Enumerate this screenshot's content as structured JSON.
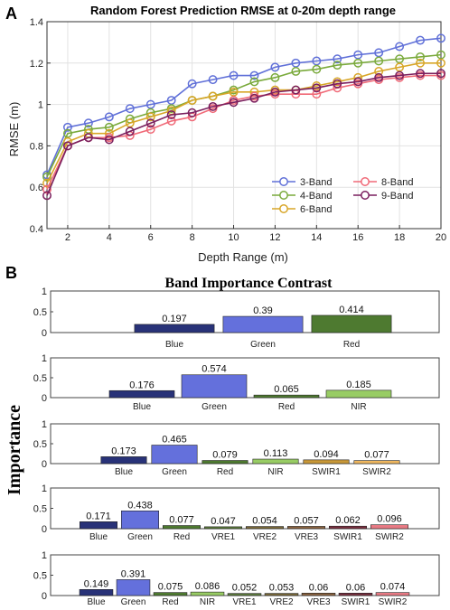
{
  "panel_a": {
    "letter": "A",
    "colors": {
      "3-Band": "#6070d8",
      "4-Band": "#7aaa3c",
      "6-Band": "#d8a628",
      "8-Band": "#f06a78",
      "9-Band": "#7a1f5e"
    },
    "chart_data": {
      "type": "line",
      "title": "Random Forest Prediction RMSE  at 0-20m depth range",
      "xlabel": "Depth Range (m)",
      "ylabel": "RMSE (m)",
      "x": [
        1,
        2,
        3,
        4,
        5,
        6,
        7,
        8,
        9,
        10,
        11,
        12,
        13,
        14,
        15,
        16,
        17,
        18,
        19,
        20
      ],
      "xlim": [
        1,
        20
      ],
      "ylim": [
        0.4,
        1.4
      ],
      "xticks": [
        "2",
        "4",
        "6",
        "8",
        "10",
        "12",
        "14",
        "16",
        "18",
        "20"
      ],
      "yticks": [
        "0.4",
        "0.6",
        "0.8",
        "1",
        "1.2",
        "1.4"
      ],
      "grid": true,
      "legend_position": "bottom-right",
      "series": [
        {
          "name": "3-Band",
          "values": [
            0.66,
            0.89,
            0.91,
            0.94,
            0.98,
            1.0,
            1.02,
            1.1,
            1.12,
            1.14,
            1.14,
            1.18,
            1.2,
            1.21,
            1.22,
            1.24,
            1.25,
            1.28,
            1.31,
            1.32
          ]
        },
        {
          "name": "4-Band",
          "values": [
            0.65,
            0.86,
            0.88,
            0.89,
            0.93,
            0.96,
            0.98,
            1.02,
            1.04,
            1.07,
            1.11,
            1.13,
            1.16,
            1.17,
            1.19,
            1.2,
            1.21,
            1.22,
            1.23,
            1.24
          ]
        },
        {
          "name": "6-Band",
          "values": [
            0.62,
            0.82,
            0.86,
            0.86,
            0.91,
            0.94,
            0.97,
            1.02,
            1.04,
            1.06,
            1.06,
            1.07,
            1.07,
            1.09,
            1.11,
            1.13,
            1.16,
            1.18,
            1.2,
            1.2
          ]
        },
        {
          "name": "8-Band",
          "values": [
            0.59,
            0.8,
            0.84,
            0.84,
            0.85,
            0.88,
            0.92,
            0.94,
            0.98,
            1.02,
            1.04,
            1.05,
            1.05,
            1.05,
            1.08,
            1.1,
            1.12,
            1.13,
            1.14,
            1.14
          ]
        },
        {
          "name": "9-Band",
          "values": [
            0.56,
            0.8,
            0.84,
            0.83,
            0.87,
            0.91,
            0.95,
            0.96,
            0.99,
            1.01,
            1.03,
            1.06,
            1.07,
            1.08,
            1.1,
            1.11,
            1.13,
            1.14,
            1.15,
            1.15
          ]
        }
      ]
    }
  },
  "panel_b": {
    "letter": "B",
    "title": "Band Importance Contrast",
    "ylabel": "Importance",
    "yticks": [
      "0",
      "0.5",
      "1"
    ],
    "band_colors": {
      "Blue": "#283278",
      "Green": "#6470dc",
      "Red": "#4e7a30",
      "NIR": "#98cc64",
      "VRE1": "#5c7c3c",
      "VRE2": "#7a6a3a",
      "VRE3": "#8c6440",
      "SWIR1": "#7a3040",
      "SWIR2": "#e87a84"
    },
    "chart_data": [
      {
        "type": "bar",
        "categories": [
          "Blue",
          "Green",
          "Red"
        ],
        "values": [
          0.197,
          0.39,
          0.414
        ],
        "labels": [
          "0.197",
          "0.39",
          "0.414"
        ],
        "ylim": [
          0,
          1
        ],
        "colors": [
          "#283278",
          "#6470dc",
          "#4e7a30"
        ]
      },
      {
        "type": "bar",
        "categories": [
          "Blue",
          "Green",
          "Red",
          "NIR"
        ],
        "values": [
          0.176,
          0.574,
          0.065,
          0.185
        ],
        "labels": [
          "0.176",
          "0.574",
          "0.065",
          "0.185"
        ],
        "ylim": [
          0,
          1
        ],
        "colors": [
          "#283278",
          "#6470dc",
          "#4e7a30",
          "#98cc64"
        ]
      },
      {
        "type": "bar",
        "categories": [
          "Blue",
          "Green",
          "Red",
          "NIR",
          "SWIR1",
          "SWIR2"
        ],
        "values": [
          0.173,
          0.465,
          0.079,
          0.113,
          0.094,
          0.077
        ],
        "labels": [
          "0.173",
          "0.465",
          "0.079",
          "0.113",
          "0.094",
          "0.077"
        ],
        "ylim": [
          0,
          1
        ],
        "colors": [
          "#283278",
          "#6470dc",
          "#4e7a30",
          "#98cc64",
          "#c89838",
          "#f0b860"
        ]
      },
      {
        "type": "bar",
        "categories": [
          "Blue",
          "Green",
          "Red",
          "VRE1",
          "VRE2",
          "VRE3",
          "SWIR1",
          "SWIR2"
        ],
        "values": [
          0.171,
          0.438,
          0.077,
          0.047,
          0.054,
          0.057,
          0.062,
          0.096
        ],
        "labels": [
          "0.171",
          "0.438",
          "0.077",
          "0.047",
          "0.054",
          "0.057",
          "0.062",
          "0.096"
        ],
        "ylim": [
          0,
          1
        ],
        "colors": [
          "#283278",
          "#6470dc",
          "#4e7a30",
          "#5c7c3c",
          "#7a6a3a",
          "#8c6440",
          "#7a3040",
          "#e87a84"
        ]
      },
      {
        "type": "bar",
        "categories": [
          "Blue",
          "Green",
          "Red",
          "NIR",
          "VRE1",
          "VRE2",
          "VRE3",
          "SWIR1",
          "SWIR2"
        ],
        "values": [
          0.149,
          0.391,
          0.075,
          0.086,
          0.052,
          0.053,
          0.06,
          0.06,
          0.074
        ],
        "labels": [
          "0.149",
          "0.391",
          "0.075",
          "0.086",
          "0.052",
          "0.053",
          "0.06",
          "0.06",
          "0.074"
        ],
        "ylim": [
          0,
          1
        ],
        "colors": [
          "#283278",
          "#6470dc",
          "#4e7a30",
          "#98cc64",
          "#5c7c3c",
          "#7a6a3a",
          "#8c6440",
          "#7a3040",
          "#e87a84"
        ]
      }
    ]
  }
}
